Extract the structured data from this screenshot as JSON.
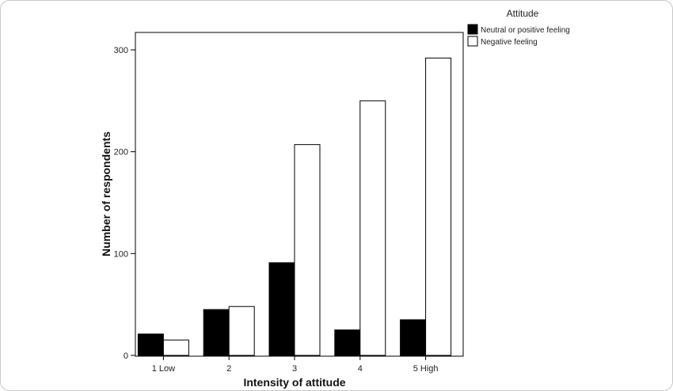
{
  "chart_data": {
    "type": "bar",
    "categories": [
      "1 Low",
      "2",
      "3",
      "4",
      "5 High"
    ],
    "series": [
      {
        "name": "Neutral or positive feeling",
        "values": [
          21,
          45,
          91,
          25,
          35
        ],
        "color": "#000000"
      },
      {
        "name": "Negative feeling",
        "values": [
          15,
          48,
          207,
          250,
          292
        ],
        "color": "#ffffff"
      }
    ],
    "xlabel": "Intensity of attitude",
    "ylabel": "Number of respondents",
    "ylim": [
      0,
      330
    ],
    "yticks": [
      0,
      100,
      200,
      300
    ],
    "legend_title": "Attitude",
    "legend_position": "top-right",
    "grid": false
  }
}
